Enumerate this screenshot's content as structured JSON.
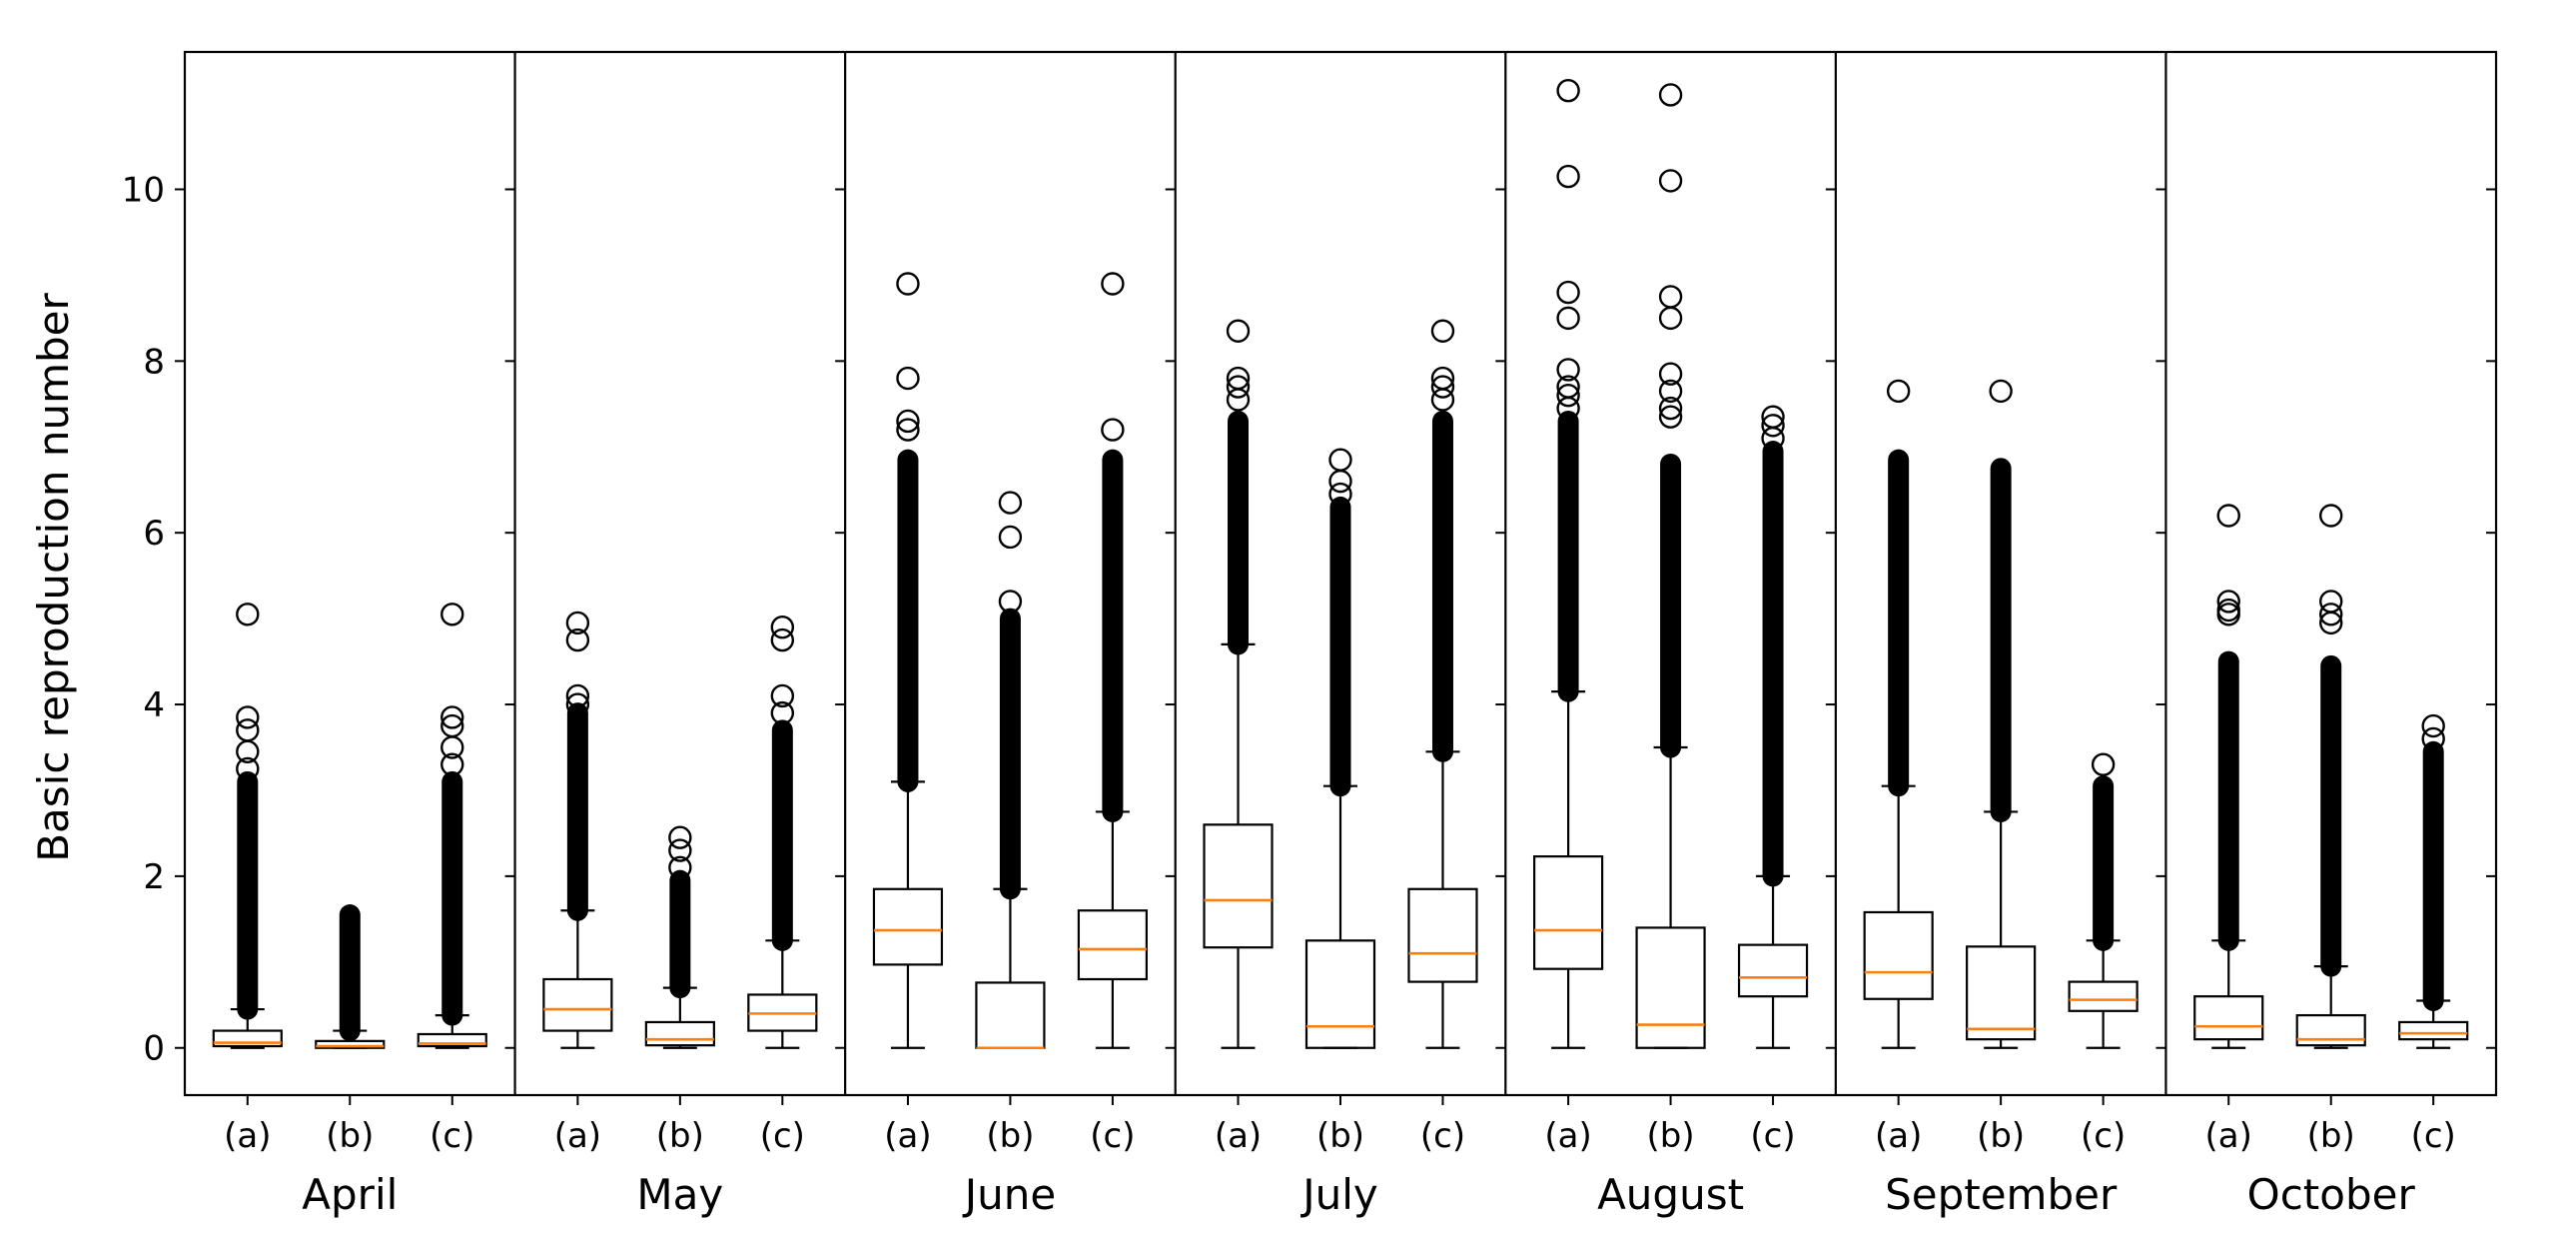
{
  "chart_data": {
    "type": "box",
    "ylabel": "Basic reproduction number",
    "ylim": [
      -0.55,
      11.6
    ],
    "yticks": [
      0,
      2,
      4,
      6,
      8,
      10
    ],
    "colors": {
      "median": "#ff7f0e",
      "box": "#000000"
    },
    "panels": [
      {
        "month": "April",
        "boxes": [
          {
            "label": "(a)",
            "whislo": 0,
            "q1": 0.02,
            "med": 0.06,
            "q3": 0.2,
            "whishi": 0.45,
            "dense": [
              0.45,
              3.1
            ],
            "fliers": [
              3.25,
              3.45,
              3.7,
              3.85,
              5.05
            ]
          },
          {
            "label": "(b)",
            "whislo": 0,
            "q1": 0,
            "med": 0.02,
            "q3": 0.08,
            "whishi": 0.2,
            "dense": [
              0.2,
              1.55
            ],
            "fliers": []
          },
          {
            "label": "(c)",
            "whislo": 0,
            "q1": 0.02,
            "med": 0.05,
            "q3": 0.16,
            "whishi": 0.38,
            "dense": [
              0.38,
              3.1
            ],
            "fliers": [
              3.3,
              3.5,
              3.75,
              3.85,
              5.05
            ]
          }
        ]
      },
      {
        "month": "May",
        "boxes": [
          {
            "label": "(a)",
            "whislo": 0,
            "q1": 0.2,
            "med": 0.45,
            "q3": 0.8,
            "whishi": 1.6,
            "dense": [
              1.6,
              3.9
            ],
            "fliers": [
              4.0,
              4.1,
              4.75,
              4.95
            ]
          },
          {
            "label": "(b)",
            "whislo": 0,
            "q1": 0.03,
            "med": 0.1,
            "q3": 0.3,
            "whishi": 0.7,
            "dense": [
              0.7,
              1.95
            ],
            "fliers": [
              2.1,
              2.3,
              2.45
            ]
          },
          {
            "label": "(c)",
            "whislo": 0,
            "q1": 0.2,
            "med": 0.4,
            "q3": 0.62,
            "whishi": 1.25,
            "dense": [
              1.25,
              3.7
            ],
            "fliers": [
              3.9,
              4.1,
              4.75,
              4.9
            ]
          }
        ]
      },
      {
        "month": "June",
        "boxes": [
          {
            "label": "(a)",
            "whislo": 0,
            "q1": 0.97,
            "med": 1.37,
            "q3": 1.85,
            "whishi": 3.1,
            "dense": [
              3.1,
              6.85
            ],
            "fliers": [
              7.2,
              7.3,
              7.8,
              8.9
            ]
          },
          {
            "label": "(b)",
            "whislo": 0,
            "q1": 0,
            "med": 0,
            "q3": 0.76,
            "whishi": 1.85,
            "dense": [
              1.85,
              5.0
            ],
            "fliers": [
              5.2,
              5.95,
              6.35
            ]
          },
          {
            "label": "(c)",
            "whislo": 0,
            "q1": 0.8,
            "med": 1.15,
            "q3": 1.6,
            "whishi": 2.75,
            "dense": [
              2.75,
              6.85
            ],
            "fliers": [
              7.2,
              8.9
            ]
          }
        ]
      },
      {
        "month": "July",
        "boxes": [
          {
            "label": "(a)",
            "whislo": 0,
            "q1": 1.17,
            "med": 1.72,
            "q3": 2.6,
            "whishi": 4.7,
            "dense": [
              4.7,
              7.3
            ],
            "fliers": [
              7.55,
              7.7,
              7.8,
              8.35
            ]
          },
          {
            "label": "(b)",
            "whislo": 0,
            "q1": 0,
            "med": 0.25,
            "q3": 1.25,
            "whishi": 3.05,
            "dense": [
              3.05,
              6.3
            ],
            "fliers": [
              6.45,
              6.6,
              6.85
            ]
          },
          {
            "label": "(c)",
            "whislo": 0,
            "q1": 0.77,
            "med": 1.1,
            "q3": 1.85,
            "whishi": 3.45,
            "dense": [
              3.45,
              7.3
            ],
            "fliers": [
              7.55,
              7.7,
              7.8,
              8.35
            ]
          }
        ]
      },
      {
        "month": "August",
        "boxes": [
          {
            "label": "(a)",
            "whislo": 0,
            "q1": 0.92,
            "med": 1.37,
            "q3": 2.23,
            "whishi": 4.15,
            "dense": [
              4.15,
              7.3
            ],
            "fliers": [
              7.45,
              7.6,
              7.7,
              7.9,
              8.5,
              8.8,
              10.15,
              11.15
            ]
          },
          {
            "label": "(b)",
            "whislo": 0,
            "q1": 0,
            "med": 0.27,
            "q3": 1.4,
            "whishi": 3.5,
            "dense": [
              3.5,
              6.8
            ],
            "fliers": [
              7.35,
              7.45,
              7.65,
              7.85,
              8.5,
              8.75,
              10.1,
              11.1
            ]
          },
          {
            "label": "(c)",
            "whislo": 0,
            "q1": 0.6,
            "med": 0.82,
            "q3": 1.2,
            "whishi": 2.0,
            "dense": [
              2.0,
              6.95
            ],
            "fliers": [
              7.1,
              7.25,
              7.35
            ]
          }
        ]
      },
      {
        "month": "September",
        "boxes": [
          {
            "label": "(a)",
            "whislo": 0,
            "q1": 0.57,
            "med": 0.88,
            "q3": 1.58,
            "whishi": 3.05,
            "dense": [
              3.05,
              6.85
            ],
            "fliers": [
              7.65
            ]
          },
          {
            "label": "(b)",
            "whislo": 0,
            "q1": 0.1,
            "med": 0.22,
            "q3": 1.18,
            "whishi": 2.75,
            "dense": [
              2.75,
              6.75
            ],
            "fliers": [
              7.65
            ]
          },
          {
            "label": "(c)",
            "whislo": 0,
            "q1": 0.43,
            "med": 0.56,
            "q3": 0.77,
            "whishi": 1.25,
            "dense": [
              1.25,
              3.05
            ],
            "fliers": [
              3.3
            ]
          }
        ]
      },
      {
        "month": "October",
        "boxes": [
          {
            "label": "(a)",
            "whislo": 0,
            "q1": 0.1,
            "med": 0.25,
            "q3": 0.6,
            "whishi": 1.25,
            "dense": [
              1.25,
              4.5
            ],
            "fliers": [
              5.05,
              5.1,
              5.2,
              6.2
            ]
          },
          {
            "label": "(b)",
            "whislo": 0,
            "q1": 0.03,
            "med": 0.1,
            "q3": 0.38,
            "whishi": 0.95,
            "dense": [
              0.95,
              4.45
            ],
            "fliers": [
              4.95,
              5.05,
              5.2,
              6.2
            ]
          },
          {
            "label": "(c)",
            "whislo": 0,
            "q1": 0.1,
            "med": 0.17,
            "q3": 0.3,
            "whishi": 0.55,
            "dense": [
              0.55,
              3.45
            ],
            "fliers": [
              3.6,
              3.75
            ]
          }
        ]
      }
    ]
  }
}
